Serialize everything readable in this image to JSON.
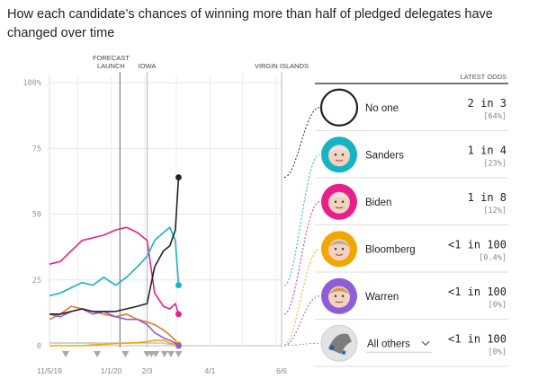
{
  "title": "How each candidate’s chances of winning more than half of pledged delegates have changed over time",
  "panel": {
    "header": "LATEST ODDS",
    "dropdown_label": "All others",
    "dropdown_icon": "chevron-down-icon"
  },
  "colors": {
    "no_one": "#222222",
    "sanders": "#17b3c4",
    "biden": "#e91e8c",
    "bloomberg": "#f0a800",
    "warren": "#8e5ed8",
    "others": "#c8c8c8",
    "buttigieg": "#e8781e"
  },
  "chart_data": {
    "type": "line",
    "title": "How each candidate’s chances of winning more than half of pledged delegates have changed over time",
    "xlabel": "",
    "ylabel": "",
    "ylim": [
      0,
      100
    ],
    "y_ticks": [
      "100%",
      "75",
      "50",
      "25",
      "0"
    ],
    "x_ticks": [
      "11/5/19",
      "1/1/20",
      "2/3",
      "4/1",
      "6/6"
    ],
    "events": [
      {
        "label": "FORECAST LAUNCH",
        "date": "2020-01-09"
      },
      {
        "label": "IOWA",
        "date": "2020-02-03"
      },
      {
        "label": "VIRGIN ISLANDS",
        "date": "2020-06-06"
      }
    ],
    "x": [
      "2019-11-05",
      "2019-11-15",
      "2019-11-25",
      "2019-12-05",
      "2019-12-15",
      "2019-12-25",
      "2020-01-05",
      "2020-01-15",
      "2020-01-25",
      "2020-02-03",
      "2020-02-10",
      "2020-02-18",
      "2020-02-24",
      "2020-02-29",
      "2020-03-03"
    ],
    "series": [
      {
        "name": "No one",
        "odds": "2 in 3",
        "pct": "[64%]",
        "latest": 64,
        "values": [
          12,
          12,
          13,
          14,
          13,
          13,
          13,
          14,
          15,
          16,
          30,
          36,
          38,
          44,
          64
        ]
      },
      {
        "name": "Sanders",
        "odds": "1 in 4",
        "pct": "[23%]",
        "latest": 23,
        "values": [
          19,
          20,
          22,
          24,
          23,
          26,
          23,
          26,
          30,
          34,
          40,
          43,
          45,
          40,
          23
        ]
      },
      {
        "name": "Biden",
        "odds": "1 in 8",
        "pct": "[12%]",
        "latest": 12,
        "values": [
          31,
          32,
          36,
          40,
          41,
          42,
          44,
          45,
          43,
          40,
          20,
          15,
          14,
          16,
          12
        ]
      },
      {
        "name": "Bloomberg",
        "odds": "<1 in 100",
        "pct": "[0.4%]",
        "latest": 0.4,
        "values": [
          0,
          0,
          0,
          0,
          0.3,
          0.5,
          0.8,
          1,
          1.2,
          1.5,
          2,
          2,
          1,
          0.5,
          0.4
        ]
      },
      {
        "name": "Warren",
        "odds": "<1 in 100",
        "pct": "[0%]",
        "latest": 0,
        "values": [
          12,
          11,
          13,
          14,
          12,
          13,
          11,
          10,
          10,
          8,
          5,
          3,
          2,
          1,
          0
        ]
      },
      {
        "name": "All others",
        "odds": "<1 in 100",
        "pct": "[0%]",
        "latest": 0,
        "values": [
          1,
          1,
          1,
          1,
          1,
          1,
          1,
          1,
          1,
          1,
          1,
          1,
          0.5,
          0.3,
          0
        ]
      },
      {
        "name": "",
        "values": [
          10,
          12,
          15,
          14,
          13,
          12,
          11,
          12,
          10,
          9,
          8,
          6,
          4,
          2,
          0
        ]
      }
    ]
  }
}
